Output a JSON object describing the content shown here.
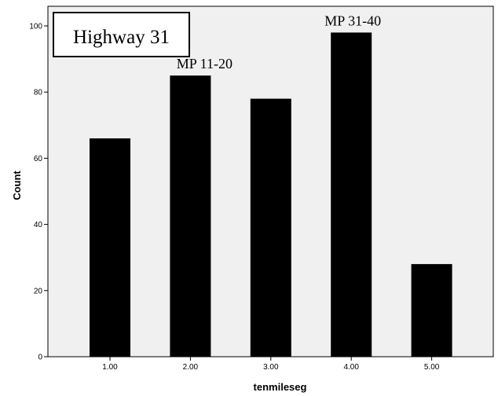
{
  "chart_data": {
    "type": "bar",
    "title": "Highway 31",
    "xlabel": "tenmileseg",
    "ylabel": "Count",
    "categories": [
      "1.00",
      "2.00",
      "3.00",
      "4.00",
      "5.00"
    ],
    "values": [
      66,
      85,
      78,
      98,
      28
    ],
    "ylim": [
      0,
      100
    ],
    "yticks": [
      0,
      20,
      40,
      60,
      80,
      100
    ],
    "annotations": [
      {
        "text": "MP 11-20",
        "category": "2.00"
      },
      {
        "text": "MP 31-40",
        "category": "4.00"
      }
    ],
    "grid": false,
    "legend": "none",
    "colors": {
      "bar": "#000000",
      "plot_background": "#f0f0f0",
      "axis": "#000000"
    }
  }
}
